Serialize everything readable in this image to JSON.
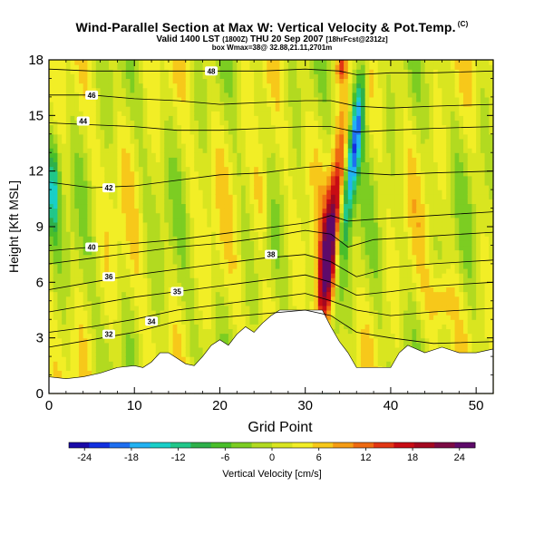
{
  "header": {
    "title": "Wind-Parallel Section at Max W: Vertical Velocity & Pot.Temp.",
    "copyright": "(C)",
    "valid_main": "Valid 1400 LST",
    "valid_utc": "(1800Z)",
    "valid_date": "THU 20 Sep 2007",
    "forecast": "[18hrFcst@2312z]",
    "box_info": "box Wmax=38@ 32.88,21.11,2701m"
  },
  "chart_data": {
    "type": "heatmap",
    "xlabel": "Grid Point",
    "ylabel": "Height [Kft MSL]",
    "xlim": [
      0,
      52
    ],
    "ylim": [
      0,
      18
    ],
    "xticks": [
      0,
      10,
      20,
      30,
      40,
      50
    ],
    "yticks": [
      0,
      3,
      6,
      9,
      12,
      15,
      18
    ],
    "colorbar": {
      "label": "Vertical Velocity [cm/s]",
      "ticks": [
        -24,
        -18,
        -12,
        -6,
        0,
        6,
        12,
        18,
        24
      ],
      "range": [
        -26,
        26
      ],
      "colors": [
        "#1a0aa8",
        "#1230e0",
        "#1f6ff0",
        "#22b2f2",
        "#19cfc8",
        "#21c78a",
        "#2eb04a",
        "#49be2a",
        "#7ccd22",
        "#b2da20",
        "#d9e520",
        "#f2ee26",
        "#f7c81a",
        "#f59c14",
        "#ee6a12",
        "#e23614",
        "#c80c14",
        "#a40820",
        "#7c0a44",
        "#5e0a6a"
      ]
    },
    "terrain_kft": [
      {
        "x": 0,
        "h": 0.9
      },
      {
        "x": 2,
        "h": 0.8
      },
      {
        "x": 4,
        "h": 0.9
      },
      {
        "x": 6,
        "h": 1.1
      },
      {
        "x": 8,
        "h": 1.4
      },
      {
        "x": 10,
        "h": 1.5
      },
      {
        "x": 11,
        "h": 1.4
      },
      {
        "x": 12,
        "h": 1.7
      },
      {
        "x": 13,
        "h": 2.2
      },
      {
        "x": 14,
        "h": 2.2
      },
      {
        "x": 16,
        "h": 1.6
      },
      {
        "x": 17,
        "h": 1.5
      },
      {
        "x": 18,
        "h": 2.0
      },
      {
        "x": 19,
        "h": 2.6
      },
      {
        "x": 20,
        "h": 2.9
      },
      {
        "x": 21,
        "h": 2.6
      },
      {
        "x": 22,
        "h": 3.2
      },
      {
        "x": 23,
        "h": 3.6
      },
      {
        "x": 24,
        "h": 3.3
      },
      {
        "x": 25,
        "h": 3.8
      },
      {
        "x": 26,
        "h": 4.2
      },
      {
        "x": 27,
        "h": 4.5
      },
      {
        "x": 30,
        "h": 4.5
      },
      {
        "x": 32,
        "h": 4.5
      },
      {
        "x": 33,
        "h": 3.6
      },
      {
        "x": 34,
        "h": 2.8
      },
      {
        "x": 35,
        "h": 2.2
      },
      {
        "x": 36,
        "h": 1.4
      },
      {
        "x": 38,
        "h": 1.4
      },
      {
        "x": 40,
        "h": 1.4
      },
      {
        "x": 41,
        "h": 2.2
      },
      {
        "x": 42,
        "h": 2.6
      },
      {
        "x": 44,
        "h": 2.2
      },
      {
        "x": 46,
        "h": 2.5
      },
      {
        "x": 48,
        "h": 2.2
      },
      {
        "x": 50,
        "h": 2.2
      },
      {
        "x": 52,
        "h": 2.4
      }
    ],
    "isentropes": [
      {
        "label": "32",
        "lx": 7,
        "ly": 3.2,
        "points": [
          [
            0,
            2.5
          ],
          [
            5,
            2.9
          ],
          [
            10,
            3.3
          ],
          [
            15,
            3.9
          ],
          [
            20,
            4.1
          ],
          [
            25,
            4.3
          ],
          [
            30,
            4.5
          ],
          [
            33,
            4.2
          ],
          [
            36,
            3.3
          ],
          [
            40,
            3.0
          ],
          [
            45,
            2.7
          ],
          [
            52,
            2.8
          ]
        ]
      },
      {
        "label": "34",
        "lx": 12,
        "ly": 3.9,
        "points": [
          [
            0,
            3.3
          ],
          [
            5,
            3.6
          ],
          [
            10,
            4.0
          ],
          [
            15,
            4.5
          ],
          [
            20,
            4.8
          ],
          [
            25,
            5.1
          ],
          [
            30,
            5.4
          ],
          [
            33,
            5.0
          ],
          [
            36,
            4.5
          ],
          [
            40,
            4.2
          ],
          [
            45,
            4.4
          ],
          [
            52,
            4.6
          ]
        ]
      },
      {
        "label": "35",
        "lx": 15,
        "ly": 5.5,
        "points": [
          [
            0,
            4.4
          ],
          [
            5,
            4.8
          ],
          [
            10,
            5.2
          ],
          [
            15,
            5.5
          ],
          [
            20,
            5.8
          ],
          [
            25,
            6.1
          ],
          [
            30,
            6.4
          ],
          [
            33,
            6.0
          ],
          [
            36,
            5.3
          ],
          [
            40,
            5.5
          ],
          [
            45,
            5.8
          ],
          [
            52,
            6.0
          ]
        ]
      },
      {
        "label": "36",
        "lx": 7,
        "ly": 6.3,
        "points": [
          [
            0,
            5.6
          ],
          [
            5,
            6.0
          ],
          [
            10,
            6.4
          ],
          [
            15,
            6.7
          ],
          [
            20,
            7.0
          ],
          [
            25,
            7.3
          ],
          [
            30,
            7.5
          ],
          [
            33,
            7.1
          ],
          [
            36,
            6.3
          ],
          [
            40,
            6.8
          ],
          [
            45,
            7.0
          ],
          [
            52,
            7.2
          ]
        ]
      },
      {
        "label": "38",
        "lx": 26,
        "ly": 7.5,
        "points": [
          [
            0,
            7.0
          ],
          [
            5,
            7.3
          ],
          [
            10,
            7.6
          ],
          [
            15,
            7.9
          ],
          [
            20,
            8.1
          ],
          [
            25,
            8.4
          ],
          [
            30,
            8.8
          ],
          [
            33,
            8.6
          ],
          [
            35,
            7.9
          ],
          [
            38,
            8.3
          ],
          [
            45,
            8.5
          ],
          [
            52,
            8.7
          ]
        ]
      },
      {
        "label": "40",
        "lx": 5,
        "ly": 7.9,
        "points": [
          [
            0,
            7.7
          ],
          [
            5,
            7.9
          ],
          [
            10,
            8.1
          ],
          [
            15,
            8.3
          ],
          [
            20,
            8.6
          ],
          [
            25,
            8.9
          ],
          [
            30,
            9.2
          ],
          [
            33,
            9.6
          ],
          [
            35,
            9.3
          ],
          [
            38,
            9.4
          ],
          [
            45,
            9.6
          ],
          [
            52,
            9.8
          ]
        ]
      },
      {
        "label": "42",
        "lx": 7,
        "ly": 11.1,
        "points": [
          [
            0,
            11.4
          ],
          [
            5,
            11.1
          ],
          [
            10,
            11.2
          ],
          [
            15,
            11.5
          ],
          [
            20,
            11.8
          ],
          [
            25,
            11.9
          ],
          [
            30,
            12.2
          ],
          [
            33,
            12.3
          ],
          [
            36,
            11.9
          ],
          [
            40,
            11.8
          ],
          [
            45,
            11.9
          ],
          [
            52,
            12.0
          ]
        ]
      },
      {
        "label": "44",
        "lx": 4,
        "ly": 14.7,
        "points": [
          [
            0,
            14.6
          ],
          [
            5,
            14.5
          ],
          [
            10,
            14.4
          ],
          [
            15,
            14.2
          ],
          [
            20,
            14.2
          ],
          [
            25,
            14.3
          ],
          [
            30,
            14.4
          ],
          [
            33,
            14.4
          ],
          [
            36,
            14.1
          ],
          [
            40,
            14.2
          ],
          [
            45,
            14.3
          ],
          [
            52,
            14.4
          ]
        ]
      },
      {
        "label": "46",
        "lx": 5,
        "ly": 16.1,
        "points": [
          [
            0,
            16.1
          ],
          [
            5,
            16.1
          ],
          [
            10,
            15.9
          ],
          [
            15,
            15.8
          ],
          [
            20,
            15.6
          ],
          [
            25,
            15.7
          ],
          [
            30,
            15.8
          ],
          [
            33,
            15.8
          ],
          [
            36,
            15.5
          ],
          [
            40,
            15.4
          ],
          [
            45,
            15.5
          ],
          [
            52,
            15.6
          ]
        ]
      },
      {
        "label": "48",
        "lx": 19,
        "ly": 17.4,
        "points": [
          [
            0,
            17.5
          ],
          [
            5,
            17.4
          ],
          [
            10,
            17.4
          ],
          [
            15,
            17.4
          ],
          [
            20,
            17.4
          ],
          [
            25,
            17.4
          ],
          [
            30,
            17.5
          ],
          [
            34,
            17.4
          ],
          [
            36,
            17.2
          ],
          [
            40,
            17.3
          ],
          [
            45,
            17.3
          ],
          [
            52,
            17.4
          ]
        ]
      }
    ]
  }
}
